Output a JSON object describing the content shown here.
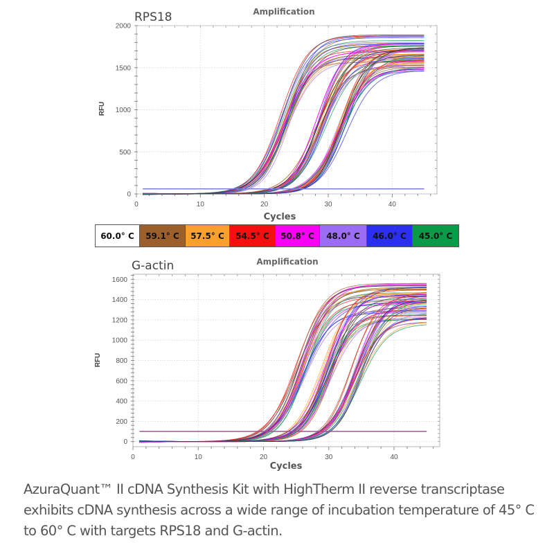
{
  "legend": {
    "items": [
      {
        "label": "60.0° C",
        "color": "#ffffff",
        "text_color": "#111111"
      },
      {
        "label": "59.1° C",
        "color": "#9c5f2c",
        "text_color": "#111111"
      },
      {
        "label": "57.5° C",
        "color": "#f9a02c",
        "text_color": "#111111"
      },
      {
        "label": "54.5° C",
        "color": "#f50f0f",
        "text_color": "#111111"
      },
      {
        "label": "50.8° C",
        "color": "#f900f5",
        "text_color": "#111111"
      },
      {
        "label": "48.0° C",
        "color": "#9c6cf5",
        "text_color": "#111111"
      },
      {
        "label": "46.0° C",
        "color": "#2b2ff0",
        "text_color": "#111111"
      },
      {
        "label": "45.0° C",
        "color": "#0b9a48",
        "text_color": "#111111"
      }
    ]
  },
  "caption": "AzuraQuant™ II cDNA Synthesis Kit with HighTherm II reverse transcriptase exhibits cDNA synthesis across a wide range of incubation temperature of 45° C to 60° C with targets RPS18 and G-actin.",
  "chart_data": [
    {
      "type": "line",
      "gene": "RPS18",
      "title": "Amplification",
      "xlabel": "Cycles",
      "ylabel": "RFU",
      "xlim": [
        0,
        47
      ],
      "ylim": [
        0,
        2000
      ],
      "xticks": [
        0,
        10,
        20,
        30,
        40
      ],
      "yticks": [
        0,
        500,
        1000,
        1500,
        2000
      ],
      "grid": true,
      "threshold": 60,
      "threshold_color": "#7b7bdc",
      "cycles_range": [
        1,
        45
      ],
      "curve_groups": [
        {
          "name": "group-1",
          "midpoint_cycle": 23.0,
          "plateau_range": [
            1550,
            1900
          ]
        },
        {
          "name": "group-2",
          "midpoint_cycle": 28.5,
          "plateau_range": [
            1500,
            1800
          ]
        },
        {
          "name": "group-3",
          "midpoint_cycle": 32.0,
          "plateau_range": [
            1450,
            1750
          ]
        }
      ],
      "series_colors": [
        "#9c5f2c",
        "#f9a02c",
        "#f50f0f",
        "#f900f5",
        "#9c6cf5",
        "#2b2ff0",
        "#0b9a48",
        "#333333"
      ]
    },
    {
      "type": "line",
      "gene": "G-actin",
      "title": "Amplification",
      "xlabel": "Cycles",
      "ylabel": "RFU",
      "xlim": [
        0,
        47
      ],
      "ylim": [
        -50,
        1650
      ],
      "xticks": [
        0,
        10,
        20,
        30,
        40
      ],
      "yticks": [
        0,
        200,
        400,
        600,
        800,
        1000,
        1200,
        1400,
        1600
      ],
      "grid": true,
      "threshold": 100,
      "threshold_color": "#a0509a",
      "cycles_range": [
        1,
        45
      ],
      "curve_groups": [
        {
          "name": "group-1",
          "midpoint_cycle": 25.5,
          "plateau_range": [
            1250,
            1570
          ]
        },
        {
          "name": "group-2",
          "midpoint_cycle": 29.5,
          "plateau_range": [
            1200,
            1530
          ]
        },
        {
          "name": "group-3",
          "midpoint_cycle": 34.0,
          "plateau_range": [
            1150,
            1500
          ]
        }
      ],
      "series_colors": [
        "#9c5f2c",
        "#f9a02c",
        "#f50f0f",
        "#f900f5",
        "#9c6cf5",
        "#2b2ff0",
        "#0b9a48",
        "#333333"
      ]
    }
  ]
}
